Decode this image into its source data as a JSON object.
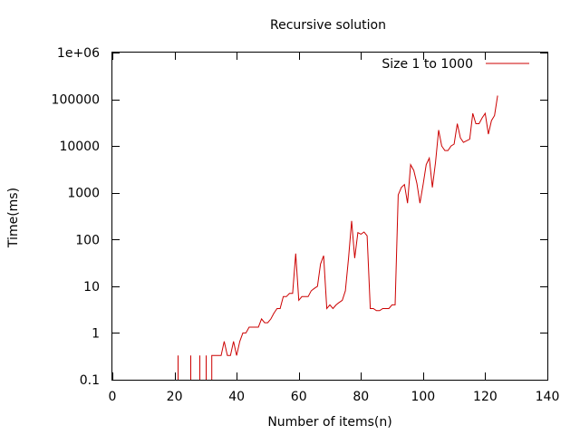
{
  "chart_data": {
    "type": "line",
    "title": "Recursive solution",
    "xlabel": "Number of items(n)",
    "ylabel": "Time(ms)",
    "xlim": [
      0,
      140
    ],
    "ylim": [
      0.1,
      1000000
    ],
    "yscale": "log",
    "grid": false,
    "legend_position": "top-right",
    "x_ticks": [
      0,
      20,
      40,
      60,
      80,
      100,
      120,
      140
    ],
    "x_tick_labels": [
      "0",
      "20",
      "40",
      "60",
      "80",
      "100",
      "120",
      "140"
    ],
    "y_ticks": [
      0.1,
      1,
      10,
      100,
      1000,
      10000,
      100000,
      1000000
    ],
    "y_tick_labels": [
      "0.1",
      "1",
      "10",
      "100",
      "1000",
      "10000",
      "100000",
      "1e+06"
    ],
    "series": [
      {
        "name": "Size 1 to 1000",
        "color": "#cc0000",
        "spikes": [
          {
            "x": 21,
            "y": 0.33
          },
          {
            "x": 25,
            "y": 0.33
          },
          {
            "x": 28,
            "y": 0.33
          },
          {
            "x": 30,
            "y": 0.33
          }
        ],
        "points": [
          [
            32,
            0.1
          ],
          [
            32,
            0.33
          ],
          [
            33,
            0.33
          ],
          [
            34,
            0.33
          ],
          [
            35,
            0.33
          ],
          [
            36,
            0.66
          ],
          [
            37,
            0.33
          ],
          [
            38,
            0.33
          ],
          [
            39,
            0.66
          ],
          [
            40,
            0.33
          ],
          [
            41,
            0.66
          ],
          [
            42,
            1.0
          ],
          [
            43,
            1.0
          ],
          [
            44,
            1.33
          ],
          [
            45,
            1.33
          ],
          [
            46,
            1.33
          ],
          [
            47,
            1.33
          ],
          [
            48,
            2.0
          ],
          [
            49,
            1.66
          ],
          [
            50,
            1.66
          ],
          [
            51,
            2.0
          ],
          [
            52,
            2.66
          ],
          [
            53,
            3.33
          ],
          [
            54,
            3.33
          ],
          [
            55,
            6.0
          ],
          [
            56,
            6.0
          ],
          [
            57,
            7.0
          ],
          [
            58,
            7.0
          ],
          [
            59,
            50
          ],
          [
            60,
            5.0
          ],
          [
            61,
            6.0
          ],
          [
            62,
            6.0
          ],
          [
            63,
            6.0
          ],
          [
            64,
            8.0
          ],
          [
            65,
            9.0
          ],
          [
            66,
            10.0
          ],
          [
            67,
            30
          ],
          [
            68,
            45
          ],
          [
            69,
            3.33
          ],
          [
            70,
            4.0
          ],
          [
            71,
            3.33
          ],
          [
            72,
            4.0
          ],
          [
            73,
            4.5
          ],
          [
            74,
            5.0
          ],
          [
            75,
            8.0
          ],
          [
            76,
            40
          ],
          [
            77,
            250
          ],
          [
            78,
            40
          ],
          [
            79,
            140
          ],
          [
            80,
            130
          ],
          [
            81,
            145
          ],
          [
            82,
            120
          ],
          [
            83,
            3.33
          ],
          [
            84,
            3.33
          ],
          [
            85,
            3.0
          ],
          [
            86,
            3.0
          ],
          [
            87,
            3.33
          ],
          [
            88,
            3.33
          ],
          [
            89,
            3.33
          ],
          [
            90,
            4.0
          ],
          [
            91,
            4.0
          ],
          [
            92,
            900
          ],
          [
            93,
            1300
          ],
          [
            94,
            1500
          ],
          [
            95,
            600
          ],
          [
            96,
            4000
          ],
          [
            97,
            3000
          ],
          [
            98,
            1600
          ],
          [
            99,
            600
          ],
          [
            100,
            1500
          ],
          [
            101,
            4000
          ],
          [
            102,
            5500
          ],
          [
            103,
            1300
          ],
          [
            104,
            4500
          ],
          [
            105,
            22000
          ],
          [
            106,
            10000
          ],
          [
            107,
            8000
          ],
          [
            108,
            8000
          ],
          [
            109,
            10000
          ],
          [
            110,
            11000
          ],
          [
            111,
            30000
          ],
          [
            112,
            15000
          ],
          [
            113,
            12000
          ],
          [
            114,
            13000
          ],
          [
            115,
            14000
          ],
          [
            116,
            50000
          ],
          [
            117,
            30000
          ],
          [
            118,
            30000
          ],
          [
            119,
            40000
          ],
          [
            120,
            50000
          ],
          [
            121,
            18000
          ],
          [
            122,
            35000
          ],
          [
            123,
            45000
          ],
          [
            124,
            120000
          ]
        ]
      }
    ]
  }
}
